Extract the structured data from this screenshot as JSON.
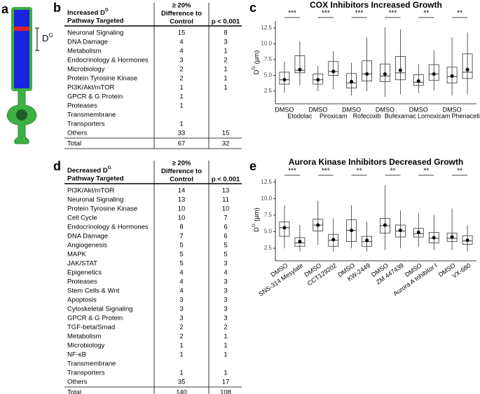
{
  "panel_labels": [
    "a",
    "b",
    "c",
    "d",
    "e"
  ],
  "diagram": {
    "label": "D",
    "label_sup": "G"
  },
  "table_b": {
    "header": {
      "pathway_line1": "Increased D",
      "pathway_sup": "G",
      "pathway_line2": "Pathway Targeted",
      "diff": [
        "≥ 20%",
        "Difference to",
        "Control"
      ],
      "p": "p < 0.001"
    },
    "rows": [
      {
        "name": "Neuronal Signaling",
        "diff": 15,
        "p": 8
      },
      {
        "name": "DNA Damage",
        "diff": 4,
        "p": 3
      },
      {
        "name": "Metabolism",
        "diff": 4,
        "p": 1
      },
      {
        "name": "Endocrinology & Hormones",
        "diff": 3,
        "p": 2
      },
      {
        "name": "Microbiology",
        "diff": 2,
        "p": 1
      },
      {
        "name": "Protein Tyrosine Kinase",
        "diff": 2,
        "p": 1
      },
      {
        "name": "PI3K/Akt/mTOR",
        "diff": 1,
        "p": 1
      },
      {
        "name": "GPCR & G Protein",
        "diff": 1,
        "p": null
      },
      {
        "name": "Proteases",
        "diff": 1,
        "p": null
      },
      {
        "name": [
          "Transmembrane",
          "Transporters"
        ],
        "diff": 1,
        "p": null
      },
      {
        "name": "Others",
        "diff": 33,
        "p": 15
      }
    ],
    "total": {
      "name": "Total",
      "diff": 67,
      "p": 32
    }
  },
  "table_d": {
    "header": {
      "pathway_line1": "Decreased D",
      "pathway_sup": "G",
      "pathway_line2": "Pathway Targeted",
      "diff": [
        "≥ 20%",
        "Difference to",
        "Control"
      ],
      "p": "p < 0.001"
    },
    "rows": [
      {
        "name": "PI3K/Akt/mTOR",
        "diff": 14,
        "p": 13
      },
      {
        "name": "Neuronal Signaling",
        "diff": 13,
        "p": 11
      },
      {
        "name": "Protein Tyrosine Kinase",
        "diff": 10,
        "p": 10
      },
      {
        "name": "Cell Cycle",
        "diff": 10,
        "p": 7
      },
      {
        "name": "Endocrinology & Hormones",
        "diff": 8,
        "p": 6
      },
      {
        "name": "DNA Damage",
        "diff": 7,
        "p": 6
      },
      {
        "name": "Angiogenesis",
        "diff": 5,
        "p": 5
      },
      {
        "name": "MAPK",
        "diff": 5,
        "p": 5
      },
      {
        "name": "JAK/STAT",
        "diff": 5,
        "p": 3
      },
      {
        "name": "Epigenetics",
        "diff": 4,
        "p": 4
      },
      {
        "name": "Proteases",
        "diff": 4,
        "p": 3
      },
      {
        "name": "Stem Cells & Wnt",
        "diff": 4,
        "p": 3
      },
      {
        "name": "Apoptosis",
        "diff": 3,
        "p": 3
      },
      {
        "name": "Cytoskeletal Signaling",
        "diff": 3,
        "p": 3
      },
      {
        "name": "GPCR & G Protein",
        "diff": 3,
        "p": 3
      },
      {
        "name": "TGF-beta/Smad",
        "diff": 2,
        "p": 2
      },
      {
        "name": "Metabolism",
        "diff": 2,
        "p": 1
      },
      {
        "name": "Microbiology",
        "diff": 1,
        "p": 1
      },
      {
        "name": "NF-κB",
        "diff": 1,
        "p": 1
      },
      {
        "name": [
          "Transmembrane",
          "Transporters"
        ],
        "diff": 1,
        "p": 1
      },
      {
        "name": "Others",
        "diff": 35,
        "p": 17
      }
    ],
    "total": {
      "name": "Total",
      "diff": 140,
      "p": 108
    }
  },
  "chart_data": [
    {
      "type": "box",
      "title": "COX Inhibitors Increased Growth",
      "ylabel": "D",
      "ylabel_sup": "G",
      "ylabel_unit": "(µm)",
      "categories": [
        "DMSO",
        "Etodolac",
        "DMSO",
        "Piroxicam",
        "DMSO",
        "Rofecoxib",
        "DMSO",
        "Bufexamac",
        "DMSO",
        "Lornoxicam",
        "DMSO",
        "Phenacetin"
      ],
      "boxes": [
        {
          "whisker_low": 2.2,
          "q1": 3.6,
          "median": 4.3,
          "q3": 5.5,
          "whisker_high": 7.2,
          "mean": 4.3
        },
        {
          "whisker_low": 3.4,
          "q1": 5.4,
          "median": 5.8,
          "q3": 8.1,
          "whisker_high": 10.4,
          "mean": 5.9
        },
        {
          "whisker_low": 2.5,
          "q1": 3.6,
          "median": 4.3,
          "q3": 5.2,
          "whisker_high": 6.5,
          "mean": 4.3
        },
        {
          "whisker_low": 2.8,
          "q1": 5.0,
          "median": 5.6,
          "q3": 7.2,
          "whisker_high": 8.8,
          "mean": 5.6
        },
        {
          "whisker_low": 1.8,
          "q1": 3.0,
          "median": 3.8,
          "q3": 5.3,
          "whisker_high": 7.0,
          "mean": 4.0
        },
        {
          "whisker_low": 2.5,
          "q1": 4.1,
          "median": 5.2,
          "q3": 7.3,
          "whisker_high": 11.0,
          "mean": 5.2
        },
        {
          "whisker_low": 1.6,
          "q1": 4.0,
          "median": 4.9,
          "q3": 6.8,
          "whisker_high": 12.6,
          "mean": 5.2
        },
        {
          "whisker_low": 2.0,
          "q1": 4.3,
          "median": 5.4,
          "q3": 8.0,
          "whisker_high": 12.3,
          "mean": 5.8
        },
        {
          "whisker_low": 2.2,
          "q1": 3.4,
          "median": 3.9,
          "q3": 5.1,
          "whisker_high": 6.8,
          "mean": 4.1
        },
        {
          "whisker_low": 2.6,
          "q1": 4.2,
          "median": 5.2,
          "q3": 6.7,
          "whisker_high": 9.0,
          "mean": 5.2
        },
        {
          "whisker_low": 1.8,
          "q1": 3.8,
          "median": 4.8,
          "q3": 6.3,
          "whisker_high": 11.0,
          "mean": 4.9
        },
        {
          "whisker_low": 2.0,
          "q1": 4.5,
          "median": 5.5,
          "q3": 8.4,
          "whisker_high": 11.8,
          "mean": 5.9
        }
      ],
      "significance": [
        "***",
        "***",
        "***",
        "***",
        "**",
        "**"
      ],
      "ylim": [
        0.5,
        13.6
      ],
      "yticks": [
        2.5,
        {
          "value": 5,
          "label": "5.0"
        },
        7.5,
        {
          "value": 10,
          "label": "10.0"
        },
        12.5
      ]
    },
    {
      "type": "box",
      "title": "Aurora Kinase Inhibitors Decreased Growth",
      "ylabel": "D",
      "ylabel_sup": "G",
      "ylabel_unit": "(µm)",
      "categories": [
        "DMSO",
        "SNS-314 Mesylate",
        "DMSO",
        "CCT129202",
        "DMSO",
        "KW-2449",
        "DMSO",
        "ZM 447439",
        "DMSO",
        "Aurora A Inhibitor I",
        "DMSO",
        "VX-680"
      ],
      "boxes": [
        {
          "whisker_low": 2.5,
          "q1": 4.3,
          "median": 5.6,
          "q3": 6.5,
          "whisker_high": 9.0,
          "mean": 5.6
        },
        {
          "whisker_low": 2.0,
          "q1": 2.8,
          "median": 3.3,
          "q3": 4.1,
          "whisker_high": 6.0,
          "mean": 3.5
        },
        {
          "whisker_low": 3.0,
          "q1": 5.1,
          "median": 6.0,
          "q3": 6.9,
          "whisker_high": 9.7,
          "mean": 6.0
        },
        {
          "whisker_low": 2.0,
          "q1": 2.8,
          "median": 3.7,
          "q3": 4.6,
          "whisker_high": 7.0,
          "mean": 3.8
        },
        {
          "whisker_low": 2.5,
          "q1": 3.5,
          "median": 5.2,
          "q3": 6.8,
          "whisker_high": 9.0,
          "mean": 5.2
        },
        {
          "whisker_low": 2.0,
          "q1": 2.8,
          "median": 3.5,
          "q3": 4.3,
          "whisker_high": 6.5,
          "mean": 3.7
        },
        {
          "whisker_low": 2.2,
          "q1": 4.8,
          "median": 5.9,
          "q3": 7.0,
          "whisker_high": 12.0,
          "mean": 6.0
        },
        {
          "whisker_low": 2.5,
          "q1": 4.2,
          "median": 5.1,
          "q3": 6.0,
          "whisker_high": 8.2,
          "mean": 5.2
        },
        {
          "whisker_low": 2.7,
          "q1": 4.2,
          "median": 4.7,
          "q3": 5.5,
          "whisker_high": 7.8,
          "mean": 4.9
        },
        {
          "whisker_low": 2.2,
          "q1": 3.3,
          "median": 4.0,
          "q3": 4.9,
          "whisker_high": 7.5,
          "mean": 4.1
        },
        {
          "whisker_low": 2.2,
          "q1": 3.5,
          "median": 4.0,
          "q3": 4.8,
          "whisker_high": 8.5,
          "mean": 4.2
        },
        {
          "whisker_low": 2.0,
          "q1": 3.1,
          "median": 3.6,
          "q3": 4.4,
          "whisker_high": 6.0,
          "mean": 3.7
        }
      ],
      "significance": [
        "***",
        "***",
        "**",
        "**",
        "**",
        "**"
      ],
      "ylim": [
        0.6,
        13.0
      ],
      "yticks": [
        2.5,
        {
          "value": 5,
          "label": "5.0"
        },
        7.5,
        {
          "value": 10,
          "label": "10.0"
        },
        12.5
      ]
    }
  ]
}
